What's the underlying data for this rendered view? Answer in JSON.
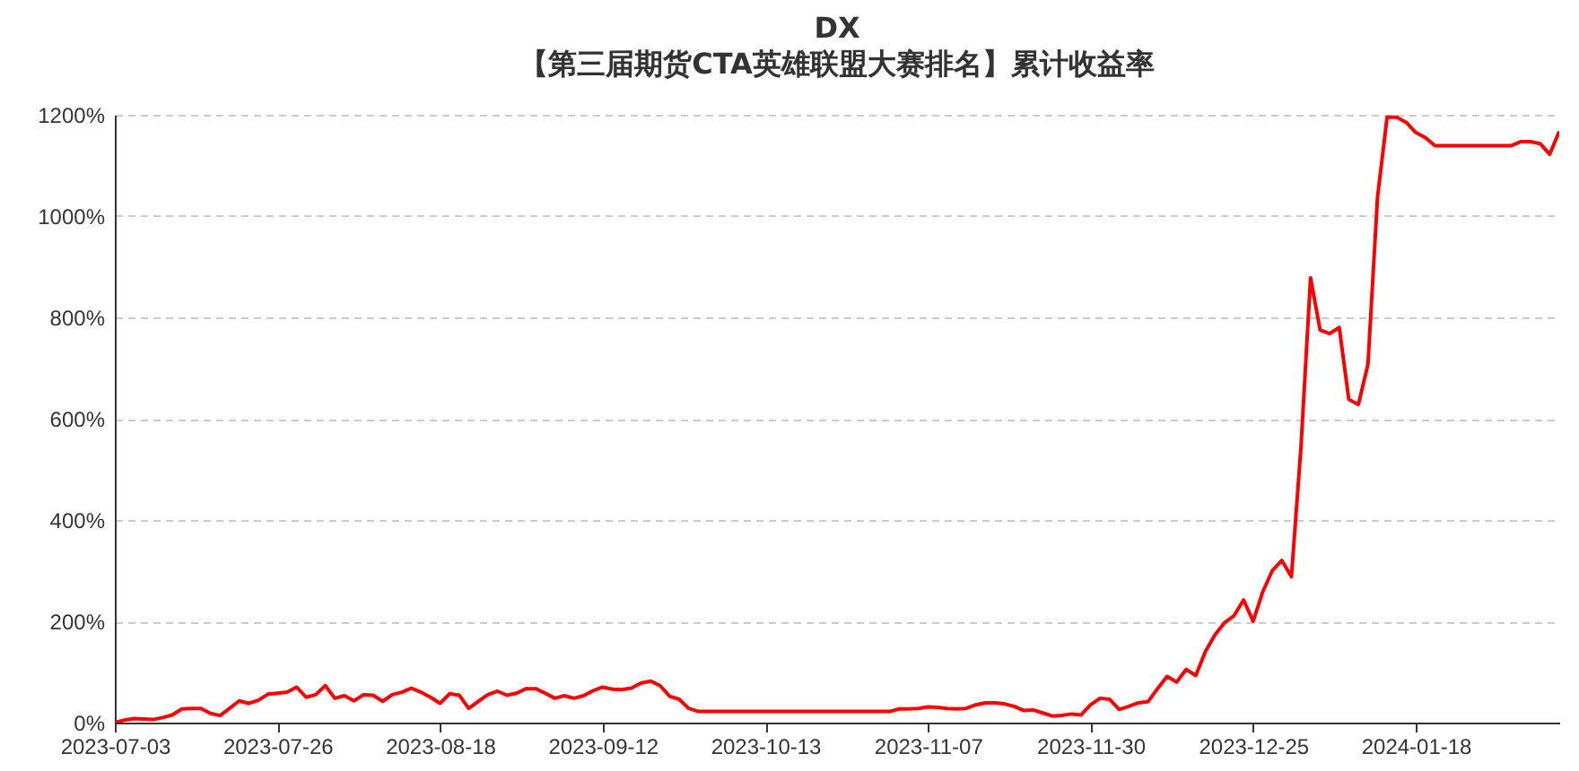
{
  "chart_data": {
    "type": "line",
    "title": "DX",
    "subtitle": "【第三届期货CTA英雄联盟大赛排名】累计收益率",
    "categories": [
      "2023-07-03",
      null,
      null,
      null,
      null,
      null,
      null,
      null,
      null,
      null,
      null,
      null,
      null,
      null,
      null,
      null,
      null,
      "2023-07-26",
      null,
      null,
      null,
      null,
      null,
      null,
      null,
      null,
      null,
      null,
      null,
      null,
      null,
      null,
      null,
      null,
      "2023-08-18",
      null,
      null,
      null,
      null,
      null,
      null,
      null,
      null,
      null,
      null,
      null,
      null,
      null,
      null,
      null,
      null,
      "2023-09-12",
      null,
      null,
      null,
      null,
      null,
      null,
      null,
      null,
      null,
      null,
      null,
      null,
      null,
      null,
      null,
      null,
      "2023-10-13",
      null,
      null,
      null,
      null,
      null,
      null,
      null,
      null,
      null,
      null,
      null,
      null,
      null,
      null,
      null,
      null,
      "2023-11-07",
      null,
      null,
      null,
      null,
      null,
      null,
      null,
      null,
      null,
      null,
      null,
      null,
      null,
      null,
      null,
      null,
      "2023-11-30",
      null,
      null,
      null,
      null,
      null,
      null,
      null,
      null,
      null,
      null,
      null,
      null,
      null,
      null,
      null,
      null,
      "2023-12-25",
      null,
      null,
      null,
      null,
      null,
      null,
      null,
      null,
      null,
      null,
      null,
      null,
      null,
      null,
      null,
      null,
      "2024-01-18",
      null,
      null,
      null,
      null,
      null,
      null,
      null,
      null,
      null,
      null,
      null,
      null,
      null,
      null,
      null
    ],
    "series": [
      {
        "color": "#ff0000",
        "values": [
          0,
          5,
          8,
          7,
          6,
          10,
          15,
          27,
          28,
          28,
          18,
          14,
          28,
          43,
          38,
          44,
          56,
          58,
          60,
          70,
          50,
          55,
          73,
          48,
          53,
          43,
          55,
          54,
          42,
          55,
          60,
          68,
          60,
          50,
          38,
          57,
          54,
          28,
          42,
          55,
          62,
          54,
          58,
          67,
          67,
          58,
          48,
          53,
          48,
          53,
          63,
          70,
          66,
          65,
          68,
          78,
          82,
          73,
          52,
          46,
          28,
          22,
          22,
          22,
          22,
          22,
          22,
          22,
          22,
          22,
          22,
          22,
          22,
          22,
          22,
          22,
          22,
          22,
          22,
          22,
          22,
          22,
          27,
          27,
          28,
          31,
          30,
          28,
          27,
          28,
          35,
          39,
          39,
          37,
          32,
          24,
          25,
          19,
          13,
          14,
          17,
          15,
          35,
          48,
          46,
          26,
          32,
          39,
          41,
          67,
          91,
          80,
          105,
          93,
          140,
          173,
          197,
          211,
          242,
          200,
          258,
          300,
          320,
          288,
          544,
          878,
          775,
          768,
          780,
          638,
          628,
          707,
          1037,
          1195,
          1195,
          1185,
          1165,
          1155,
          1139,
          1139,
          1139,
          1139,
          1139,
          1139,
          1139,
          1139,
          1139,
          1147,
          1147,
          1143,
          1122,
          1167
        ]
      }
    ],
    "ylim": [
      0,
      1200
    ],
    "yticks": [
      {
        "value": 0,
        "label": "0%"
      },
      {
        "value": 200,
        "label": "200%"
      },
      {
        "value": 400,
        "label": "400%"
      },
      {
        "value": 600,
        "label": "600%"
      },
      {
        "value": 800,
        "label": "800%"
      },
      {
        "value": 1000,
        "label": "1000%"
      },
      {
        "value": 1200,
        "label": "1200%"
      }
    ],
    "grid": "y"
  }
}
